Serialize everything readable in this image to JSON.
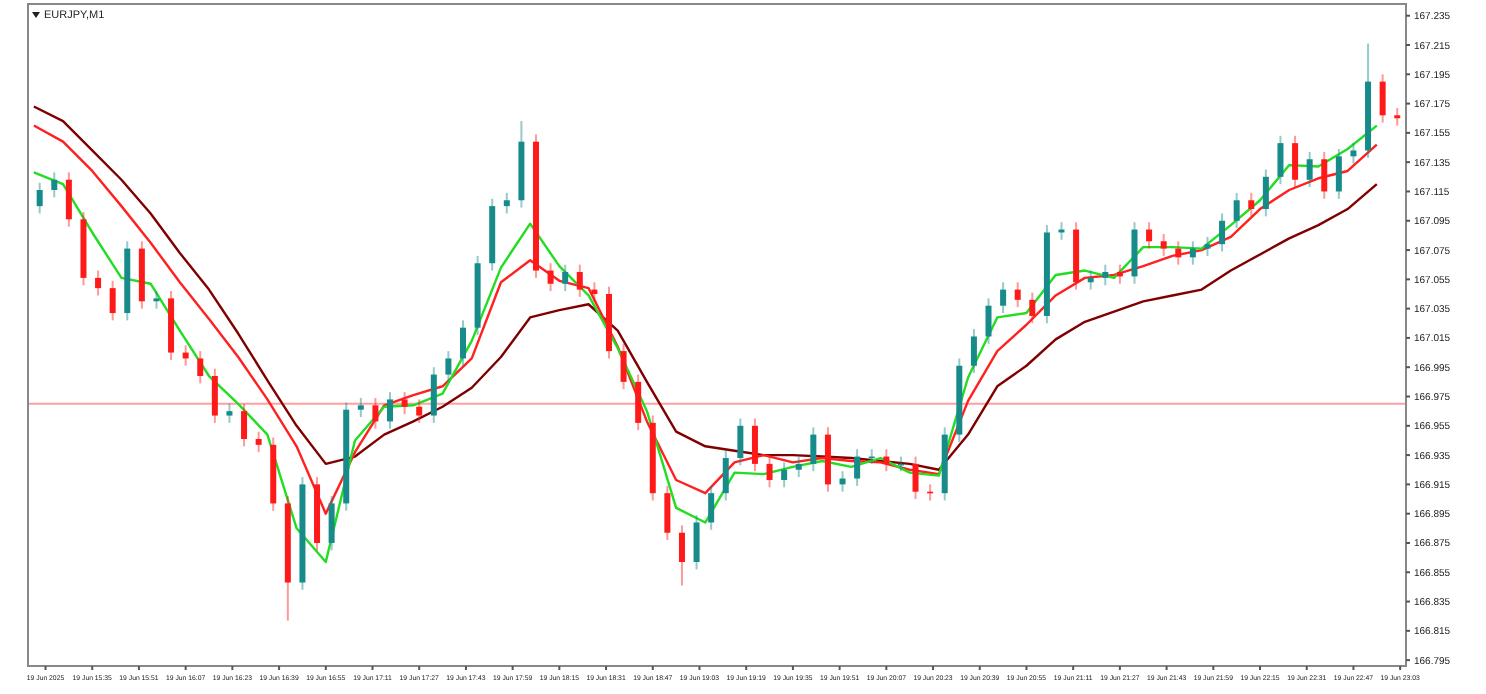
{
  "chart_data": {
    "type": "candlestick",
    "title": "EURJPY,M1",
    "colors": [
      "#178a8a",
      "#178a8a",
      "#ff1a1a",
      "#ff1a1a",
      "#ff1a1a",
      "#ff1a1a",
      "#178a8a",
      "#ff1a1a",
      "#178a8a",
      "#ff1a1a",
      "#ff1a1a",
      "#ff1a1a",
      "#ff1a1a",
      "#178a8a",
      "#ff1a1a",
      "#ff1a1a",
      "#ff1a1a",
      "#ff1a1a",
      "#178a8a",
      "#ff1a1a",
      "#178a8a",
      "#178a8a",
      "#178a8a",
      "#ff1a1a",
      "#178a8a",
      "#ff1a1a",
      "#ff1a1a",
      "#178a8a",
      "#178a8a",
      "#178a8a",
      "#178a8a",
      "#178a8a",
      "#178a8a",
      "#178a8a",
      "#ff1a1a",
      "#ff1a1a",
      "#178a8a",
      "#ff1a1a",
      "#ff1a1a",
      "#ff1a1a",
      "#ff1a1a",
      "#ff1a1a",
      "#ff1a1a",
      "#ff1a1a",
      "#ff1a1a",
      "#178a8a",
      "#178a8a",
      "#178a8a",
      "#178a8a",
      "#ff1a1a",
      "#ff1a1a",
      "#178a8a",
      "#178a8a",
      "#178a8a",
      "#ff1a1a",
      "#178a8a",
      "#178a8a",
      "#178a8a",
      "#ff1a1a",
      "#178a8a",
      "#ff1a1a",
      "#ff1a1a",
      "#178a8a",
      "#178a8a",
      "#178a8a",
      "#178a8a",
      "#178a8a",
      "#ff1a1a",
      "#ff1a1a",
      "#178a8a",
      "#178a8a",
      "#ff1a1a",
      "#178a8a",
      "#178a8a",
      "#ff1a1a",
      "#178a8a",
      "#ff1a1a",
      "#ff1a1a",
      "#ff1a1a",
      "#178a8a",
      "#178a8a",
      "#178a8a",
      "#178a8a",
      "#ff1a1a",
      "#178a8a",
      "#178a8a",
      "#ff1a1a",
      "#178a8a",
      "#ff1a1a",
      "#178a8a",
      "#178a8a",
      "#178a8a",
      "#ff1a1a",
      "#ff1a1a"
    ],
    "xlim": [
      "2025-06-19T15:13",
      "2025-06-19T23:05"
    ],
    "xticks": [
      {
        "value": "2025-06-19T15:19",
        "label": "19 Jun 2025"
      },
      {
        "value": "2025-06-19T15:35",
        "label": "19 Jun 15:35"
      },
      {
        "value": "2025-06-19T15:51",
        "label": "19 Jun 15:51"
      },
      {
        "value": "2025-06-19T16:07",
        "label": "19 Jun 16:07"
      },
      {
        "value": "2025-06-19T16:23",
        "label": "19 Jun 16:23"
      },
      {
        "value": "2025-06-19T16:39",
        "label": "19 Jun 16:39"
      },
      {
        "value": "2025-06-19T16:55",
        "label": "19 Jun 16:55"
      },
      {
        "value": "2025-06-19T17:11",
        "label": "19 Jun 17:11"
      },
      {
        "value": "2025-06-19T17:27",
        "label": "19 Jun 17:27"
      },
      {
        "value": "2025-06-19T17:43",
        "label": "19 Jun 17:43"
      },
      {
        "value": "2025-06-19T17:59",
        "label": "19 Jun 17:59"
      },
      {
        "value": "2025-06-19T18:15",
        "label": "19 Jun 18:15"
      },
      {
        "value": "2025-06-19T18:31",
        "label": "19 Jun 18:31"
      },
      {
        "value": "2025-06-19T18:47",
        "label": "19 Jun 18:47"
      },
      {
        "value": "2025-06-19T19:03",
        "label": "19 Jun 19:03"
      },
      {
        "value": "2025-06-19T19:19",
        "label": "19 Jun 19:19"
      },
      {
        "value": "2025-06-19T19:35",
        "label": "19 Jun 19:35"
      },
      {
        "value": "2025-06-19T19:51",
        "label": "19 Jun 19:51"
      },
      {
        "value": "2025-06-19T20:07",
        "label": "19 Jun 20:07"
      },
      {
        "value": "2025-06-19T20:23",
        "label": "19 Jun 20:23"
      },
      {
        "value": "2025-06-19T20:39",
        "label": "19 Jun 20:39"
      },
      {
        "value": "2025-06-19T20:55",
        "label": "19 Jun 20:55"
      },
      {
        "value": "2025-06-19T21:11",
        "label": "19 Jun 21:11"
      },
      {
        "value": "2025-06-19T21:27",
        "label": "19 Jun 21:27"
      },
      {
        "value": "2025-06-19T21:43",
        "label": "19 Jun 21:43"
      },
      {
        "value": "2025-06-19T21:59",
        "label": "19 Jun 21:59"
      },
      {
        "value": "2025-06-19T22:15",
        "label": "19 Jun 22:15"
      },
      {
        "value": "2025-06-19T22:31",
        "label": "19 Jun 22:31"
      },
      {
        "value": "2025-06-19T22:47",
        "label": "19 Jun 22:47"
      },
      {
        "value": "2025-06-19T23:03",
        "label": "19 Jun 23:03"
      }
    ],
    "ylim": [
      166.791,
      167.243
    ],
    "yticks": [
      166.795,
      166.815,
      166.835,
      166.855,
      166.875,
      166.895,
      166.915,
      166.935,
      166.955,
      166.975,
      166.995,
      167.015,
      167.035,
      167.055,
      167.075,
      167.095,
      167.115,
      167.135,
      167.155,
      167.175,
      167.195,
      167.215,
      167.235
    ],
    "grid": false,
    "ref_lines": [
      {
        "axis": "y",
        "value": 166.97,
        "color": "#ff9f9f"
      }
    ],
    "x": [
      "2025-06-19T15:17",
      "2025-06-19T15:22",
      "2025-06-19T15:27",
      "2025-06-19T15:32",
      "2025-06-19T15:37",
      "2025-06-19T15:42",
      "2025-06-19T15:47",
      "2025-06-19T15:52",
      "2025-06-19T15:57",
      "2025-06-19T16:02",
      "2025-06-19T16:07",
      "2025-06-19T16:12",
      "2025-06-19T16:17",
      "2025-06-19T16:22",
      "2025-06-19T16:27",
      "2025-06-19T16:32",
      "2025-06-19T16:37",
      "2025-06-19T16:42",
      "2025-06-19T16:47",
      "2025-06-19T16:52",
      "2025-06-19T16:57",
      "2025-06-19T17:02",
      "2025-06-19T17:07",
      "2025-06-19T17:12",
      "2025-06-19T17:17",
      "2025-06-19T17:22",
      "2025-06-19T17:27",
      "2025-06-19T17:32",
      "2025-06-19T17:37",
      "2025-06-19T17:42",
      "2025-06-19T17:47",
      "2025-06-19T17:52",
      "2025-06-19T17:57",
      "2025-06-19T18:02",
      "2025-06-19T18:07",
      "2025-06-19T18:12",
      "2025-06-19T18:17",
      "2025-06-19T18:22",
      "2025-06-19T18:27",
      "2025-06-19T18:32",
      "2025-06-19T18:37",
      "2025-06-19T18:42",
      "2025-06-19T18:47",
      "2025-06-19T18:52",
      "2025-06-19T18:57",
      "2025-06-19T19:02",
      "2025-06-19T19:07",
      "2025-06-19T19:12",
      "2025-06-19T19:17",
      "2025-06-19T19:22",
      "2025-06-19T19:27",
      "2025-06-19T19:32",
      "2025-06-19T19:37",
      "2025-06-19T19:42",
      "2025-06-19T19:47",
      "2025-06-19T19:52",
      "2025-06-19T19:57",
      "2025-06-19T20:02",
      "2025-06-19T20:07",
      "2025-06-19T20:12",
      "2025-06-19T20:17",
      "2025-06-19T20:22",
      "2025-06-19T20:27",
      "2025-06-19T20:32",
      "2025-06-19T20:37",
      "2025-06-19T20:42",
      "2025-06-19T20:47",
      "2025-06-19T20:52",
      "2025-06-19T20:57",
      "2025-06-19T21:02",
      "2025-06-19T21:07",
      "2025-06-19T21:12",
      "2025-06-19T21:17",
      "2025-06-19T21:22",
      "2025-06-19T21:27",
      "2025-06-19T21:32",
      "2025-06-19T21:37",
      "2025-06-19T21:42",
      "2025-06-19T21:47",
      "2025-06-19T21:52",
      "2025-06-19T21:57",
      "2025-06-19T22:02",
      "2025-06-19T22:07",
      "2025-06-19T22:12",
      "2025-06-19T22:17",
      "2025-06-19T22:22",
      "2025-06-19T22:27",
      "2025-06-19T22:32",
      "2025-06-19T22:37",
      "2025-06-19T22:42",
      "2025-06-19T22:47",
      "2025-06-19T22:52",
      "2025-06-19T22:57",
      "2025-06-19T23:02"
    ],
    "ohlc": [
      [
        167.105,
        167.121,
        167.1,
        167.116
      ],
      [
        167.116,
        167.128,
        167.111,
        167.123
      ],
      [
        167.123,
        167.128,
        167.091,
        167.096
      ],
      [
        167.096,
        167.101,
        167.051,
        167.056
      ],
      [
        167.056,
        167.061,
        167.044,
        167.049
      ],
      [
        167.049,
        167.054,
        167.027,
        167.032
      ],
      [
        167.032,
        167.081,
        167.027,
        167.076
      ],
      [
        167.076,
        167.081,
        167.035,
        167.04
      ],
      [
        167.04,
        167.047,
        167.035,
        167.042
      ],
      [
        167.042,
        167.047,
        167.0,
        167.005
      ],
      [
        167.005,
        167.01,
        166.996,
        167.001
      ],
      [
        167.001,
        167.006,
        166.984,
        166.989
      ],
      [
        166.989,
        166.994,
        166.957,
        166.962
      ],
      [
        166.962,
        166.97,
        166.957,
        166.965
      ],
      [
        166.965,
        166.97,
        166.941,
        166.946
      ],
      [
        166.946,
        166.951,
        166.937,
        166.942
      ],
      [
        166.942,
        166.947,
        166.897,
        166.902
      ],
      [
        166.902,
        166.907,
        166.822,
        166.848
      ],
      [
        166.848,
        166.92,
        166.843,
        166.915
      ],
      [
        166.915,
        166.92,
        166.87,
        166.875
      ],
      [
        166.875,
        166.907,
        166.87,
        166.902
      ],
      [
        166.902,
        166.971,
        166.897,
        166.966
      ],
      [
        166.966,
        166.974,
        166.961,
        166.969
      ],
      [
        166.969,
        166.974,
        166.953,
        166.958
      ],
      [
        166.958,
        166.978,
        166.953,
        166.973
      ],
      [
        166.973,
        166.978,
        166.963,
        166.968
      ],
      [
        166.968,
        166.973,
        166.957,
        166.962
      ],
      [
        166.962,
        166.995,
        166.957,
        166.99
      ],
      [
        166.99,
        167.006,
        166.985,
        167.001
      ],
      [
        167.001,
        167.027,
        166.996,
        167.022
      ],
      [
        167.022,
        167.071,
        167.017,
        167.066
      ],
      [
        167.066,
        167.11,
        167.061,
        167.105
      ],
      [
        167.105,
        167.114,
        167.1,
        167.109
      ],
      [
        167.109,
        167.163,
        167.104,
        167.149
      ],
      [
        167.149,
        167.154,
        167.056,
        167.061
      ],
      [
        167.061,
        167.066,
        167.047,
        167.052
      ],
      [
        167.052,
        167.065,
        167.047,
        167.06
      ],
      [
        167.06,
        167.065,
        167.043,
        167.048
      ],
      [
        167.048,
        167.053,
        167.04,
        167.045
      ],
      [
        167.045,
        167.05,
        167.001,
        167.006
      ],
      [
        167.006,
        167.011,
        166.98,
        166.985
      ],
      [
        166.985,
        166.99,
        166.952,
        166.957
      ],
      [
        166.957,
        166.962,
        166.904,
        166.909
      ],
      [
        166.909,
        166.914,
        166.877,
        166.882
      ],
      [
        166.882,
        166.887,
        166.846,
        166.862
      ],
      [
        166.862,
        166.894,
        166.857,
        166.889
      ],
      [
        166.889,
        166.914,
        166.884,
        166.909
      ],
      [
        166.909,
        166.938,
        166.904,
        166.933
      ],
      [
        166.933,
        166.96,
        166.928,
        166.955
      ],
      [
        166.955,
        166.96,
        166.924,
        166.929
      ],
      [
        166.929,
        166.934,
        166.913,
        166.918
      ],
      [
        166.918,
        166.93,
        166.913,
        166.925
      ],
      [
        166.925,
        166.934,
        166.92,
        166.929
      ],
      [
        166.929,
        166.954,
        166.924,
        166.949
      ],
      [
        166.949,
        166.954,
        166.91,
        166.915
      ],
      [
        166.915,
        166.924,
        166.91,
        166.919
      ],
      [
        166.919,
        166.939,
        166.914,
        166.934
      ],
      [
        166.934,
        166.939,
        166.929,
        166.934
      ],
      [
        166.934,
        166.939,
        166.924,
        166.929
      ],
      [
        166.929,
        166.934,
        166.924,
        166.929
      ],
      [
        166.929,
        166.934,
        166.905,
        166.91
      ],
      [
        166.91,
        166.915,
        166.904,
        166.909
      ],
      [
        166.909,
        166.954,
        166.904,
        166.949
      ],
      [
        166.949,
        167.001,
        166.944,
        166.996
      ],
      [
        166.996,
        167.021,
        166.991,
        167.016
      ],
      [
        167.016,
        167.042,
        167.011,
        167.037
      ],
      [
        167.037,
        167.053,
        167.032,
        167.048
      ],
      [
        167.048,
        167.053,
        167.036,
        167.041
      ],
      [
        167.041,
        167.046,
        167.025,
        167.03
      ],
      [
        167.03,
        167.092,
        167.025,
        167.087
      ],
      [
        167.087,
        167.094,
        167.082,
        167.089
      ],
      [
        167.089,
        167.094,
        167.048,
        167.053
      ],
      [
        167.053,
        167.061,
        167.048,
        167.056
      ],
      [
        167.056,
        167.065,
        167.051,
        167.06
      ],
      [
        167.06,
        167.065,
        167.052,
        167.057
      ],
      [
        167.057,
        167.094,
        167.052,
        167.089
      ],
      [
        167.089,
        167.094,
        167.076,
        167.081
      ],
      [
        167.081,
        167.086,
        167.071,
        167.076
      ],
      [
        167.076,
        167.081,
        167.065,
        167.07
      ],
      [
        167.07,
        167.081,
        167.065,
        167.076
      ],
      [
        167.076,
        167.084,
        167.071,
        167.079
      ],
      [
        167.079,
        167.1,
        167.074,
        167.095
      ],
      [
        167.095,
        167.114,
        167.09,
        167.109
      ],
      [
        167.109,
        167.114,
        167.098,
        167.103
      ],
      [
        167.103,
        167.13,
        167.098,
        167.125
      ],
      [
        167.125,
        167.153,
        167.12,
        167.148
      ],
      [
        167.148,
        167.153,
        167.118,
        167.123
      ],
      [
        167.123,
        167.142,
        167.118,
        167.137
      ],
      [
        167.137,
        167.142,
        167.11,
        167.115
      ],
      [
        167.115,
        167.144,
        167.11,
        167.139
      ],
      [
        167.139,
        167.148,
        167.134,
        167.143
      ],
      [
        167.143,
        167.216,
        167.138,
        167.19
      ],
      [
        167.19,
        167.195,
        167.162,
        167.167
      ],
      [
        167.167,
        167.172,
        167.16,
        167.165
      ]
    ],
    "series": [
      {
        "type": "line",
        "color": "#800000",
        "x": [
          "2025-06-19T15:15",
          "2025-06-19T15:25",
          "2025-06-19T15:35",
          "2025-06-19T15:45",
          "2025-06-19T15:55",
          "2025-06-19T16:05",
          "2025-06-19T16:15",
          "2025-06-19T16:25",
          "2025-06-19T16:35",
          "2025-06-19T16:45",
          "2025-06-19T16:55",
          "2025-06-19T17:05",
          "2025-06-19T17:15",
          "2025-06-19T17:25",
          "2025-06-19T17:35",
          "2025-06-19T17:45",
          "2025-06-19T17:55",
          "2025-06-19T18:05",
          "2025-06-19T18:15",
          "2025-06-19T18:25",
          "2025-06-19T18:35",
          "2025-06-19T18:45",
          "2025-06-19T18:55",
          "2025-06-19T19:05",
          "2025-06-19T19:15",
          "2025-06-19T19:25",
          "2025-06-19T19:35",
          "2025-06-19T19:45",
          "2025-06-19T19:55",
          "2025-06-19T20:05",
          "2025-06-19T20:15",
          "2025-06-19T20:25",
          "2025-06-19T20:35",
          "2025-06-19T20:45",
          "2025-06-19T20:55",
          "2025-06-19T21:05",
          "2025-06-19T21:15",
          "2025-06-19T21:25",
          "2025-06-19T21:35",
          "2025-06-19T21:45",
          "2025-06-19T21:55",
          "2025-06-19T22:05",
          "2025-06-19T22:15",
          "2025-06-19T22:25",
          "2025-06-19T22:35",
          "2025-06-19T22:45",
          "2025-06-19T22:55"
        ],
        "values": [
          167.173,
          167.163,
          167.143,
          167.123,
          167.1,
          167.073,
          167.048,
          167.018,
          166.986,
          166.955,
          166.929,
          166.934,
          166.949,
          166.958,
          166.968,
          166.981,
          167.002,
          167.029,
          167.034,
          167.038,
          167.02,
          166.985,
          166.951,
          166.941,
          166.938,
          166.935,
          166.935,
          166.934,
          166.933,
          166.931,
          166.929,
          166.925,
          166.949,
          166.982,
          166.996,
          167.014,
          167.026,
          167.033,
          167.04,
          167.044,
          167.048,
          167.061,
          167.072,
          167.083,
          167.092,
          167.103,
          167.12
        ]
      },
      {
        "type": "line",
        "color": "#ff2020",
        "x": [
          "2025-06-19T15:15",
          "2025-06-19T15:25",
          "2025-06-19T15:35",
          "2025-06-19T15:45",
          "2025-06-19T15:55",
          "2025-06-19T16:05",
          "2025-06-19T16:15",
          "2025-06-19T16:25",
          "2025-06-19T16:35",
          "2025-06-19T16:45",
          "2025-06-19T16:55",
          "2025-06-19T17:05",
          "2025-06-19T17:15",
          "2025-06-19T17:25",
          "2025-06-19T17:35",
          "2025-06-19T17:45",
          "2025-06-19T17:55",
          "2025-06-19T18:05",
          "2025-06-19T18:15",
          "2025-06-19T18:25",
          "2025-06-19T18:35",
          "2025-06-19T18:45",
          "2025-06-19T18:55",
          "2025-06-19T19:05",
          "2025-06-19T19:15",
          "2025-06-19T19:25",
          "2025-06-19T19:35",
          "2025-06-19T19:45",
          "2025-06-19T19:55",
          "2025-06-19T20:05",
          "2025-06-19T20:15",
          "2025-06-19T20:25",
          "2025-06-19T20:35",
          "2025-06-19T20:45",
          "2025-06-19T20:55",
          "2025-06-19T21:05",
          "2025-06-19T21:15",
          "2025-06-19T21:25",
          "2025-06-19T21:35",
          "2025-06-19T21:45",
          "2025-06-19T21:55",
          "2025-06-19T22:05",
          "2025-06-19T22:15",
          "2025-06-19T22:25",
          "2025-06-19T22:35",
          "2025-06-19T22:45",
          "2025-06-19T22:55"
        ],
        "values": [
          167.16,
          167.149,
          167.129,
          167.105,
          167.08,
          167.053,
          167.028,
          167.002,
          166.973,
          166.941,
          166.895,
          166.937,
          166.969,
          166.976,
          166.982,
          167.001,
          167.053,
          167.068,
          167.054,
          167.049,
          167.009,
          166.958,
          166.918,
          166.909,
          166.93,
          166.935,
          166.93,
          166.933,
          166.931,
          166.93,
          166.925,
          166.922,
          166.972,
          167.006,
          167.024,
          167.044,
          167.056,
          167.058,
          167.064,
          167.071,
          167.075,
          167.084,
          167.103,
          167.116,
          167.124,
          167.129,
          167.147
        ]
      },
      {
        "type": "line",
        "color": "#22dd22",
        "x": [
          "2025-06-19T15:15",
          "2025-06-19T15:25",
          "2025-06-19T15:35",
          "2025-06-19T15:45",
          "2025-06-19T15:55",
          "2025-06-19T16:05",
          "2025-06-19T16:15",
          "2025-06-19T16:25",
          "2025-06-19T16:35",
          "2025-06-19T16:45",
          "2025-06-19T16:55",
          "2025-06-19T17:05",
          "2025-06-19T17:15",
          "2025-06-19T17:25",
          "2025-06-19T17:35",
          "2025-06-19T17:45",
          "2025-06-19T17:55",
          "2025-06-19T18:05",
          "2025-06-19T18:15",
          "2025-06-19T18:25",
          "2025-06-19T18:35",
          "2025-06-19T18:45",
          "2025-06-19T18:55",
          "2025-06-19T19:05",
          "2025-06-19T19:15",
          "2025-06-19T19:25",
          "2025-06-19T19:35",
          "2025-06-19T19:45",
          "2025-06-19T19:55",
          "2025-06-19T20:05",
          "2025-06-19T20:15",
          "2025-06-19T20:25",
          "2025-06-19T20:35",
          "2025-06-19T20:45",
          "2025-06-19T20:55",
          "2025-06-19T21:05",
          "2025-06-19T21:15",
          "2025-06-19T21:25",
          "2025-06-19T21:35",
          "2025-06-19T21:45",
          "2025-06-19T21:55",
          "2025-06-19T22:05",
          "2025-06-19T22:15",
          "2025-06-19T22:25",
          "2025-06-19T22:35",
          "2025-06-19T22:45",
          "2025-06-19T22:55"
        ],
        "values": [
          167.128,
          167.12,
          167.087,
          167.056,
          167.052,
          167.02,
          166.989,
          166.97,
          166.949,
          166.885,
          166.862,
          166.945,
          166.968,
          166.969,
          166.977,
          167.013,
          167.063,
          167.093,
          167.064,
          167.044,
          167.008,
          166.965,
          166.899,
          166.889,
          166.923,
          166.922,
          166.927,
          166.931,
          166.927,
          166.933,
          166.923,
          166.921,
          166.988,
          167.029,
          167.032,
          167.058,
          167.061,
          167.056,
          167.077,
          167.077,
          167.076,
          167.092,
          167.109,
          167.133,
          167.132,
          167.144,
          167.16
        ]
      }
    ]
  }
}
